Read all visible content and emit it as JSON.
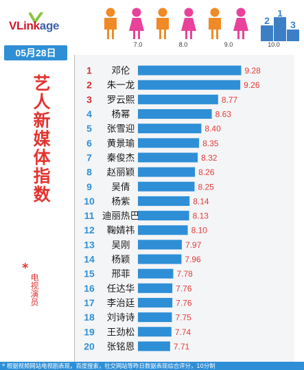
{
  "header": {
    "logo_prefix": "VLink",
    "logo_suffix": "age",
    "podium_labels": [
      "2",
      "1",
      "3"
    ],
    "person_colors": [
      "#f08a26",
      "#e8429a",
      "#f08a26",
      "#e8429a",
      "#f08a26",
      "#e8429a"
    ]
  },
  "date": "05月28日",
  "title": "艺人新媒体指数",
  "star": "*",
  "category": "电视演员",
  "footnote": "* 根据视频网站电视剧表现，百度搜索，社交网站等昨日数据表现综合评分，10分制",
  "colors": {
    "accent": "#2e8fd6",
    "title_red": "#e3342f",
    "rank_red": "#d32f2f",
    "rank_blue": "#2e8fd6",
    "value_red": "#e53935"
  },
  "chart_data": {
    "type": "bar",
    "orientation": "horizontal",
    "xlim": [
      7.0,
      10.0
    ],
    "xticks": [
      "7.0",
      "8.0",
      "9.0",
      "10.0"
    ],
    "ranks": [
      "1",
      "2",
      "3",
      "4",
      "5",
      "6",
      "7",
      "8",
      "9",
      "10",
      "11",
      "12",
      "13",
      "14",
      "15",
      "16",
      "17",
      "18",
      "19",
      "20"
    ],
    "categories": [
      "邓伦",
      "朱一龙",
      "罗云熙",
      "杨幂",
      "张雪迎",
      "黄景瑜",
      "秦俊杰",
      "赵丽颖",
      "吴倩",
      "杨紫",
      "迪丽热巴",
      "鞠婧祎",
      "吴刚",
      "杨颖",
      "邢菲",
      "任达华",
      "李治廷",
      "刘诗诗",
      "王劲松",
      "张铭恩"
    ],
    "values": [
      9.28,
      9.26,
      8.77,
      8.63,
      8.4,
      8.35,
      8.32,
      8.26,
      8.25,
      8.14,
      8.13,
      8.1,
      7.97,
      7.96,
      7.78,
      7.76,
      7.76,
      7.75,
      7.74,
      7.71
    ],
    "value_labels": [
      "9.28",
      "9.26",
      "8.77",
      "8.63",
      "8.40",
      "8.35",
      "8.32",
      "8.26",
      "8.25",
      "8.14",
      "8.13",
      "8.10",
      "7.97",
      "7.96",
      "7.78",
      "7.76",
      "7.76",
      "7.75",
      "7.74",
      "7.71"
    ],
    "legend": "none",
    "grid": false
  }
}
